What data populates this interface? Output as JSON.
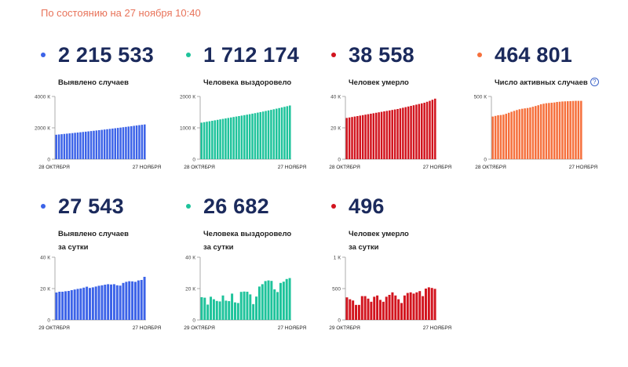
{
  "status_text": "По состоянию на 27 ноября 10:40",
  "cards": [
    {
      "value": "2 215 533",
      "label1": "Выявлено случаев",
      "label2": "",
      "help": false,
      "color": "#3c63e8",
      "chart_data": {
        "type": "bar",
        "x_start": "28 ОКТЯБРЯ",
        "x_end": "27 НОЯБРЯ",
        "y_ticks": [
          {
            "v": 0,
            "label": "0"
          },
          {
            "v": 2000,
            "label": "2000 К"
          },
          {
            "v": 4000,
            "label": "4000 К"
          }
        ],
        "ylim": [
          0,
          4000
        ],
        "values": [
          1560,
          1577,
          1594,
          1612,
          1629,
          1647,
          1664,
          1682,
          1700,
          1718,
          1737,
          1755,
          1774,
          1793,
          1812,
          1831,
          1851,
          1871,
          1891,
          1911,
          1932,
          1953,
          1974,
          1995,
          2016,
          2038,
          2060,
          2082,
          2104,
          2127,
          2150,
          2172,
          2194,
          2215
        ]
      }
    },
    {
      "value": "1 712 174",
      "label1": "Человека выздоровело",
      "label2": "",
      "help": false,
      "color": "#1ec39b",
      "chart_data": {
        "type": "bar",
        "x_start": "28 ОКТЯБРЯ",
        "x_end": "27 НОЯБРЯ",
        "y_ticks": [
          {
            "v": 0,
            "label": "0"
          },
          {
            "v": 1000,
            "label": "1000 К"
          },
          {
            "v": 2000,
            "label": "2000 К"
          }
        ],
        "ylim": [
          0,
          2000
        ],
        "values": [
          1165,
          1180,
          1195,
          1210,
          1225,
          1240,
          1255,
          1270,
          1285,
          1300,
          1315,
          1330,
          1345,
          1360,
          1375,
          1390,
          1405,
          1420,
          1435,
          1452,
          1468,
          1485,
          1502,
          1519,
          1537,
          1555,
          1573,
          1592,
          1611,
          1630,
          1650,
          1670,
          1690,
          1712
        ]
      }
    },
    {
      "value": "38 558",
      "label1": "Человек умерло",
      "label2": "",
      "help": false,
      "color": "#d2141e",
      "chart_data": {
        "type": "bar",
        "x_start": "28 ОКТЯБРЯ",
        "x_end": "27 НОЯБРЯ",
        "y_ticks": [
          {
            "v": 0,
            "label": "0"
          },
          {
            "v": 20,
            "label": "20 К"
          },
          {
            "v": 40,
            "label": "40 К"
          }
        ],
        "ylim": [
          0,
          40
        ],
        "values": [
          26.3,
          26.6,
          26.9,
          27.2,
          27.5,
          27.8,
          28.1,
          28.4,
          28.7,
          29.0,
          29.3,
          29.6,
          29.9,
          30.2,
          30.5,
          30.8,
          31.1,
          31.4,
          31.7,
          32.0,
          32.4,
          32.8,
          33.2,
          33.6,
          34.0,
          34.4,
          34.8,
          35.2,
          35.6,
          36.0,
          36.6,
          37.2,
          37.9,
          38.6
        ]
      }
    },
    {
      "value": "464 801",
      "label1": "Число активных случаев",
      "label2": "",
      "help": true,
      "color": "#f6703c",
      "chart_data": {
        "type": "bar",
        "x_start": "28 ОКТЯБРЯ",
        "x_end": "27 НОЯБРЯ",
        "y_ticks": [
          {
            "v": 0,
            "label": "0"
          },
          {
            "v": 500,
            "label": "500 К"
          }
        ],
        "ylim": [
          0,
          500
        ],
        "values": [
          340,
          345,
          350,
          352,
          355,
          362,
          370,
          378,
          385,
          392,
          398,
          402,
          405,
          408,
          412,
          418,
          424,
          430,
          438,
          442,
          446,
          448,
          450,
          452,
          456,
          458,
          460,
          461,
          462,
          463,
          464,
          465,
          465,
          465
        ]
      }
    },
    {
      "value": "27 543",
      "label1": "Выявлено случаев",
      "label2": "за сутки",
      "help": false,
      "color": "#3c63e8",
      "chart_data": {
        "type": "bar",
        "x_start": "29 ОКТЯБРЯ",
        "x_end": "27 НОЯБРЯ",
        "y_ticks": [
          {
            "v": 0,
            "label": "0"
          },
          {
            "v": 20,
            "label": "20 К"
          },
          {
            "v": 40,
            "label": "40 К"
          }
        ],
        "ylim": [
          0,
          40
        ],
        "values": [
          17.5,
          18,
          18,
          18.3,
          18.5,
          19,
          19.4,
          19.8,
          20.1,
          20.6,
          21.2,
          20.4,
          20.8,
          21.3,
          21.8,
          22.1,
          22.5,
          22.8,
          22.6,
          22.8,
          22.1,
          21.9,
          23.6,
          24.3,
          24.7,
          24.6,
          24.3,
          25.2,
          25.5,
          27.5
        ]
      }
    },
    {
      "value": "26 682",
      "label1": "Человека выздоровело",
      "label2": "за сутки",
      "help": false,
      "color": "#1ec39b",
      "chart_data": {
        "type": "bar",
        "x_start": "29 ОКТЯБРЯ",
        "x_end": "27 НОЯБРЯ",
        "y_ticks": [
          {
            "v": 0,
            "label": "0"
          },
          {
            "v": 20,
            "label": "20 К"
          },
          {
            "v": 40,
            "label": "40 К"
          }
        ],
        "ylim": [
          0,
          40
        ],
        "values": [
          14.5,
          14.2,
          9.8,
          14.8,
          13.2,
          12.1,
          11.8,
          15.6,
          12.3,
          12.0,
          16.8,
          11.2,
          10.8,
          17.9,
          18.1,
          18.0,
          16.3,
          10.1,
          14.9,
          21.3,
          22.8,
          24.8,
          25.2,
          24.9,
          19.5,
          17.8,
          23.6,
          24.4,
          26.1,
          26.7
        ]
      }
    },
    {
      "value": "496",
      "label1": "Человек умерло",
      "label2": "за сутки",
      "help": false,
      "color": "#d2141e",
      "chart_data": {
        "type": "bar",
        "x_start": "29 ОКТЯБРЯ",
        "x_end": "27 НОЯБРЯ",
        "y_ticks": [
          {
            "v": 0,
            "label": "0"
          },
          {
            "v": 500,
            "label": "500"
          },
          {
            "v": 1000,
            "label": "1 К"
          }
        ],
        "ylim": [
          0,
          1000
        ],
        "values": [
          360,
          330,
          310,
          240,
          240,
          380,
          380,
          340,
          290,
          370,
          390,
          320,
          290,
          370,
          400,
          440,
          390,
          330,
          270,
          390,
          430,
          440,
          420,
          440,
          460,
          380,
          500,
          520,
          510,
          496
        ]
      }
    }
  ]
}
